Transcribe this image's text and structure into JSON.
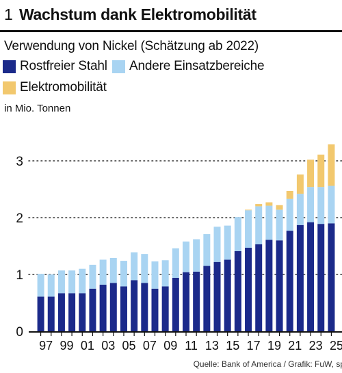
{
  "header": {
    "figure_number": "1",
    "title": "Wachstum dank Elektromobilität",
    "subtitle": "Verwendung von Nickel (Schätzung ab 2022)"
  },
  "unit_label": "in Mio. Tonnen",
  "source": "Quelle: Bank of America / Grafik: FuW, sp",
  "colors": {
    "stahl": "#1b2a8a",
    "andere": "#a9d4f2",
    "elektro": "#f2c86e",
    "grid": "#333333",
    "axis": "#111111"
  },
  "chart_data": {
    "type": "bar",
    "stacked": true,
    "title": "Wachstum dank Elektromobilität",
    "subtitle": "Verwendung von Nickel (Schätzung ab 2022)",
    "ylabel": "in Mio. Tonnen",
    "ylim": [
      0,
      3.3
    ],
    "yticks": [
      0,
      1,
      2,
      3
    ],
    "grid": "horizontal dotted",
    "legend_position": "top-left",
    "categories": [
      "1997",
      "1998",
      "1999",
      "2000",
      "2001",
      "2002",
      "2003",
      "2004",
      "2005",
      "2006",
      "2007",
      "2008",
      "2009",
      "2010",
      "2011",
      "2012",
      "2013",
      "2014",
      "2015",
      "2016",
      "2017",
      "2018",
      "2019",
      "2020",
      "2021",
      "2022",
      "2023",
      "2024",
      "2025"
    ],
    "xtick_labels": [
      "97",
      "",
      "99",
      "",
      "01",
      "",
      "03",
      "",
      "05",
      "",
      "07",
      "",
      "09",
      "",
      "11",
      "",
      "13",
      "",
      "15",
      "",
      "17",
      "",
      "19",
      "",
      "21",
      "",
      "23",
      "",
      "25"
    ],
    "series": [
      {
        "name": "Rostfreier Stahl",
        "color": "#1b2a8a",
        "values": [
          0.61,
          0.61,
          0.67,
          0.67,
          0.67,
          0.75,
          0.82,
          0.85,
          0.79,
          0.9,
          0.85,
          0.75,
          0.79,
          0.94,
          1.04,
          1.05,
          1.15,
          1.22,
          1.26,
          1.41,
          1.47,
          1.53,
          1.61,
          1.6,
          1.77,
          1.87,
          1.92,
          1.89,
          1.9
        ]
      },
      {
        "name": "Andere Einsatzbereiche",
        "color": "#a9d4f2",
        "values": [
          0.4,
          0.39,
          0.4,
          0.4,
          0.43,
          0.42,
          0.44,
          0.44,
          0.45,
          0.49,
          0.51,
          0.48,
          0.46,
          0.52,
          0.54,
          0.57,
          0.56,
          0.62,
          0.6,
          0.6,
          0.66,
          0.67,
          0.6,
          0.54,
          0.56,
          0.55,
          0.62,
          0.65,
          0.66
        ]
      },
      {
        "name": "Elektromobilität",
        "color": "#f2c86e",
        "values": [
          0,
          0,
          0,
          0,
          0,
          0,
          0,
          0,
          0,
          0,
          0,
          0,
          0,
          0,
          0,
          0,
          0,
          0,
          0,
          0,
          0.01,
          0.04,
          0.06,
          0.08,
          0.14,
          0.34,
          0.48,
          0.57,
          0.73
        ]
      }
    ]
  }
}
